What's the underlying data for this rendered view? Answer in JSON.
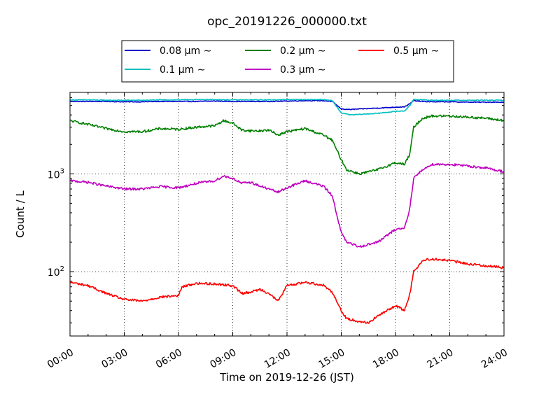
{
  "chart_data": {
    "type": "line",
    "title": "opc_20191226_000000.txt",
    "xlabel": "Time on 2019-12-26 (JST)",
    "ylabel": "Count / L",
    "yscale": "log",
    "ylim": [
      22,
      6800
    ],
    "xlim": [
      0,
      24
    ],
    "x_tick_labels": [
      "00:00",
      "03:00",
      "06:00",
      "09:00",
      "12:00",
      "15:00",
      "18:00",
      "21:00",
      "24:00"
    ],
    "y_tick_labels": [
      {
        "base": "10",
        "exp": "2"
      },
      {
        "base": "10",
        "exp": "3"
      }
    ],
    "grid": true,
    "legend_position": "top",
    "series": [
      {
        "name": "0.08 μm ∼",
        "color": "#0000cc",
        "x": [
          0,
          1,
          2,
          3,
          4,
          5,
          6,
          7,
          8,
          9,
          10,
          11,
          12,
          13,
          14,
          14.5,
          15,
          15.5,
          16,
          16.5,
          17,
          17.5,
          18,
          18.5,
          18.8,
          19,
          19.5,
          20,
          21,
          22,
          23,
          24
        ],
        "y": [
          5500,
          5500,
          5500,
          5450,
          5450,
          5500,
          5500,
          5500,
          5550,
          5500,
          5500,
          5500,
          5550,
          5600,
          5600,
          5500,
          4600,
          4550,
          4600,
          4650,
          4700,
          4750,
          4800,
          4850,
          5200,
          5600,
          5500,
          5450,
          5450,
          5400,
          5400,
          5400
        ]
      },
      {
        "name": "0.1 μm ∼",
        "color": "#00bfbf",
        "x": [
          0,
          1,
          2,
          3,
          4,
          5,
          6,
          7,
          8,
          9,
          10,
          11,
          12,
          13,
          14,
          14.5,
          15,
          15.5,
          16,
          16.5,
          17,
          17.5,
          18,
          18.5,
          18.8,
          19,
          19.5,
          20,
          21,
          22,
          23,
          24
        ],
        "y": [
          5700,
          5700,
          5650,
          5650,
          5650,
          5700,
          5700,
          5750,
          5750,
          5700,
          5700,
          5700,
          5750,
          5750,
          5750,
          5600,
          4200,
          4000,
          4050,
          4100,
          4150,
          4250,
          4350,
          4400,
          5000,
          5800,
          5700,
          5650,
          5650,
          5650,
          5650,
          5650
        ]
      },
      {
        "name": "0.2 μm ∼",
        "color": "#008000",
        "x": [
          0,
          1,
          2,
          3,
          4,
          5,
          6,
          7,
          8,
          8.5,
          9,
          9.5,
          10,
          10.5,
          11,
          11.5,
          12,
          13,
          14,
          14.5,
          15,
          15.3,
          16,
          17,
          18,
          18.5,
          18.8,
          19,
          19.5,
          20,
          21,
          22,
          23,
          24
        ],
        "y": [
          3500,
          3200,
          2900,
          2700,
          2700,
          2900,
          2850,
          3000,
          3100,
          3500,
          3300,
          2800,
          2750,
          2750,
          2800,
          2500,
          2700,
          2900,
          2500,
          2200,
          1400,
          1100,
          1000,
          1100,
          1300,
          1250,
          1600,
          3000,
          3700,
          3900,
          3900,
          3800,
          3700,
          3500
        ]
      },
      {
        "name": "0.3 μm ∼",
        "color": "#bf00bf",
        "x": [
          0,
          1,
          2,
          3,
          4,
          5,
          6,
          7,
          8,
          8.5,
          9,
          9.5,
          10,
          10.5,
          11,
          11.5,
          12,
          13,
          14,
          14.5,
          15,
          15.3,
          16,
          17,
          18,
          18.5,
          18.8,
          19,
          19.5,
          20,
          21,
          22,
          23,
          24
        ],
        "y": [
          850,
          820,
          750,
          700,
          700,
          740,
          720,
          800,
          850,
          950,
          900,
          800,
          820,
          750,
          700,
          650,
          720,
          850,
          750,
          600,
          250,
          200,
          180,
          200,
          270,
          280,
          450,
          900,
          1100,
          1250,
          1250,
          1200,
          1150,
          1050
        ]
      },
      {
        "name": "0.5 μm ∼",
        "color": "#ff0000",
        "x": [
          0,
          1,
          2,
          3,
          4,
          5,
          6,
          6.2,
          7,
          8,
          9,
          9.5,
          10,
          10.5,
          11,
          11.5,
          12,
          13,
          14,
          14.5,
          15,
          15.3,
          16,
          16.5,
          17,
          18,
          18.5,
          18.8,
          19,
          19.5,
          20,
          21,
          22,
          23,
          24
        ],
        "y": [
          78,
          72,
          60,
          52,
          50,
          55,
          57,
          70,
          76,
          75,
          72,
          60,
          62,
          66,
          60,
          50,
          72,
          78,
          73,
          62,
          40,
          33,
          31,
          30,
          35,
          45,
          40,
          60,
          100,
          130,
          135,
          130,
          120,
          115,
          110
        ]
      }
    ]
  }
}
